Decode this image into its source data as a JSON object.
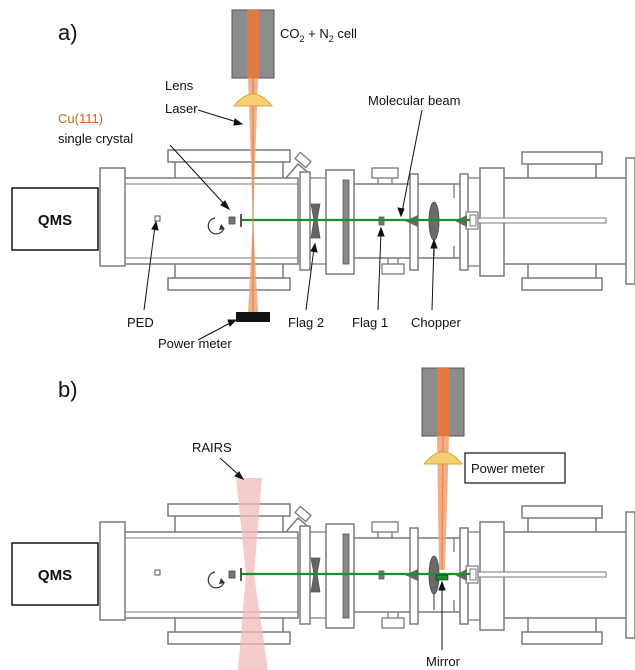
{
  "panel_a": {
    "letter": "a)",
    "qms": "QMS",
    "cell": {
      "prefix": "CO",
      "sub1": "2",
      "mid": " + N",
      "sub2": "2",
      "suffix": " cell"
    },
    "lens": "Lens",
    "laser": "Laser",
    "crystal_line1": "Cu(111)",
    "crystal_line2": "single crystal",
    "molecular_beam": "Molecular beam",
    "ped": "PED",
    "flag2": "Flag 2",
    "flag1": "Flag 1",
    "chopper": "Chopper",
    "power_meter": "Power meter"
  },
  "panel_b": {
    "letter": "b)",
    "qms": "QMS",
    "rairs": "RAIRS",
    "power_meter": "Power meter",
    "mirror": "Mirror"
  },
  "colors": {
    "chamber_outline": "#7a7a7a",
    "beam": "#1a8f2a",
    "laser": "#f0a57a",
    "laser_core": "#e07a40",
    "cell_body": "#8a8a8a",
    "lens": "#f5cf72",
    "crystal_text": "#c8651b",
    "rairs": "#f3b9b9",
    "component": "#666666"
  }
}
